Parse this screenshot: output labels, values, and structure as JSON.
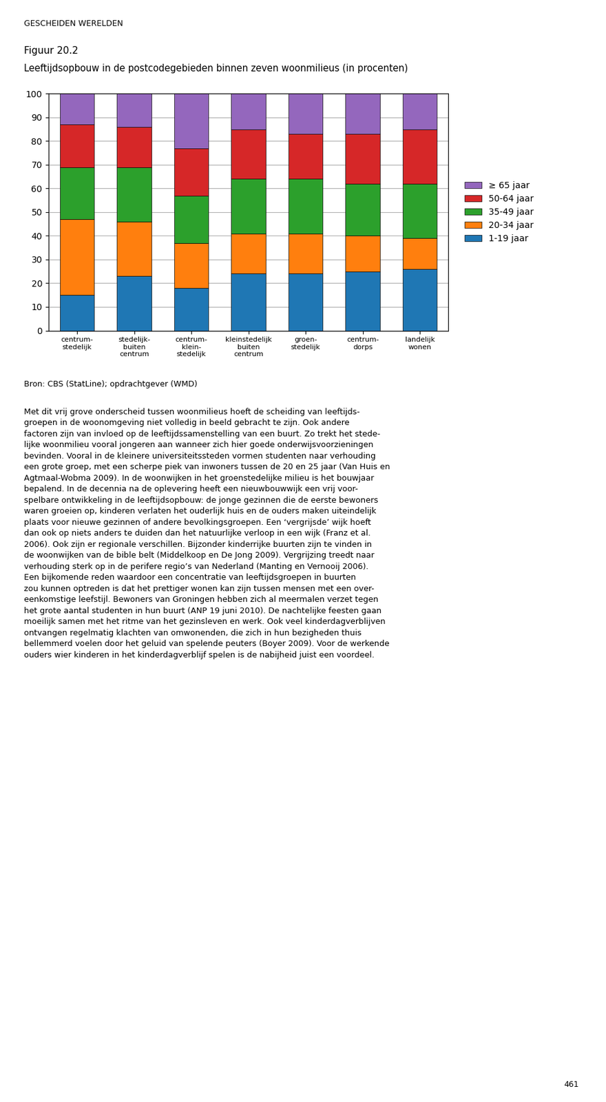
{
  "chart_data": {
    "type": "bar",
    "stacked": true,
    "title": "Leeftijdsopbouw in de postcodegebieden binnen zeven woonmilieus (in procenten)",
    "categories": [
      "centrum-\nstedelijk",
      "stedelijk-\nbuiten\ncentrum",
      "centrum-\nklein-\nstedelijk",
      "kleinstedelijk\nbuiten\ncentrum",
      "groen-\nstedelijk",
      "centrum-\ndorps",
      "landelijk\nwonen"
    ],
    "series": [
      {
        "name": "1-19 jaar",
        "values": [
          15,
          23,
          18,
          24,
          24,
          25,
          26
        ]
      },
      {
        "name": "20-34 jaar",
        "values": [
          32,
          23,
          19,
          17,
          17,
          15,
          13
        ]
      },
      {
        "name": "35-49 jaar",
        "values": [
          22,
          23,
          20,
          23,
          23,
          22,
          23
        ]
      },
      {
        "name": "50-64 jaar",
        "values": [
          18,
          17,
          20,
          21,
          19,
          21,
          23
        ]
      },
      {
        "name": "≥ 65 jaar",
        "values": [
          13,
          14,
          23,
          15,
          17,
          17,
          15
        ]
      }
    ],
    "ylim": [
      0,
      100
    ],
    "yticks": [
      0,
      10,
      20,
      30,
      40,
      50,
      60,
      70,
      80,
      90,
      100
    ],
    "grid": true,
    "legend": "center left",
    "annotations": [
      "GESCHEIDEN WERELDEN",
      "Figuur 20.2",
      "Bron: CBS (StatLine); opdrachtgever (WMD)",
      "Met dit vrij grove onderscheid tussen woonmilieus hoeft de scheiding van leeftijds-\ngroepen in de woonomgeving niet volledig in beeld gebracht te zijn. Ook andere\nfactoren zijn van invloed op de leeftijdssamenstelling van een buurt. Zo trekt het stede-\nlijke woonmilieu vooral jongeren aan wanneer zich hier goede onderwijsvoorzieningen\nbevinden. Vooral in de kleinere universiteitssteden vormen studenten naar verhouding\neen grote groep, met een scherpe piek van inwoners tussen de 20 en 25 jaar (Van Huis en\nAgtmaal-Wobma 2009). In de woonwijken in het groenstedelijke milieu is het bouwjaar\nbepalend. In de decennia na de oplevering heeft een nieuwbouwwijk een vrij voor-\nspelbare ontwikkeling in de leeftijdsopbouw: de jonge gezinnen die de eerste bewoners\nwaren groeien op, kinderen verlaten het ouderlijk huis en de ouders maken uiteindelijk\nplaats voor nieuwe gezinnen of andere bevolkingsgroepen. Een ‘vergrijsde’ wijk hoeft\ndan ook op niets anders te duiden dan het natuurlijke verloop in een wijk (Franz et al.\n2006). Ook zijn er regionale verschillen. Bijzonder kinderrijke buurten zijn te vinden in\nde woonwijken van de bible belt (Middelkoop en De Jong 2009). Vergrijzing treedt naar\nverhouding sterk op in de perifere regio’s van Nederland (Manting en Vernooij 2006).\nEen bijkomende reden waardoor een concentratie van leeftijdsgroepen in buurten\nzou kunnen optreden is dat het prettiger wonen kan zijn tussen mensen met een over-\neenkomstige leefstijl. Bewoners van Groningen hebben zich al meermalen verzet tegen\nhet grote aantal studenten in hun buurt (ANP 19 juni 2010). De nachtelijke feesten gaan\nmoeilijk samen met het ritme van het gezinsleven en werk. Ook veel kinderdagverblijven\nontvangen regelmatig klachten van omwonenden, die zich in hun bezigheden thuis\nbellemmerd voelen door het geluid van spelende peuters (Boyer 2009). Voor de werkende\nouders wier kinderen in het kinderdagverblijf spelen is de nabijheid juist een voordeel.",
      "461"
    ]
  }
}
